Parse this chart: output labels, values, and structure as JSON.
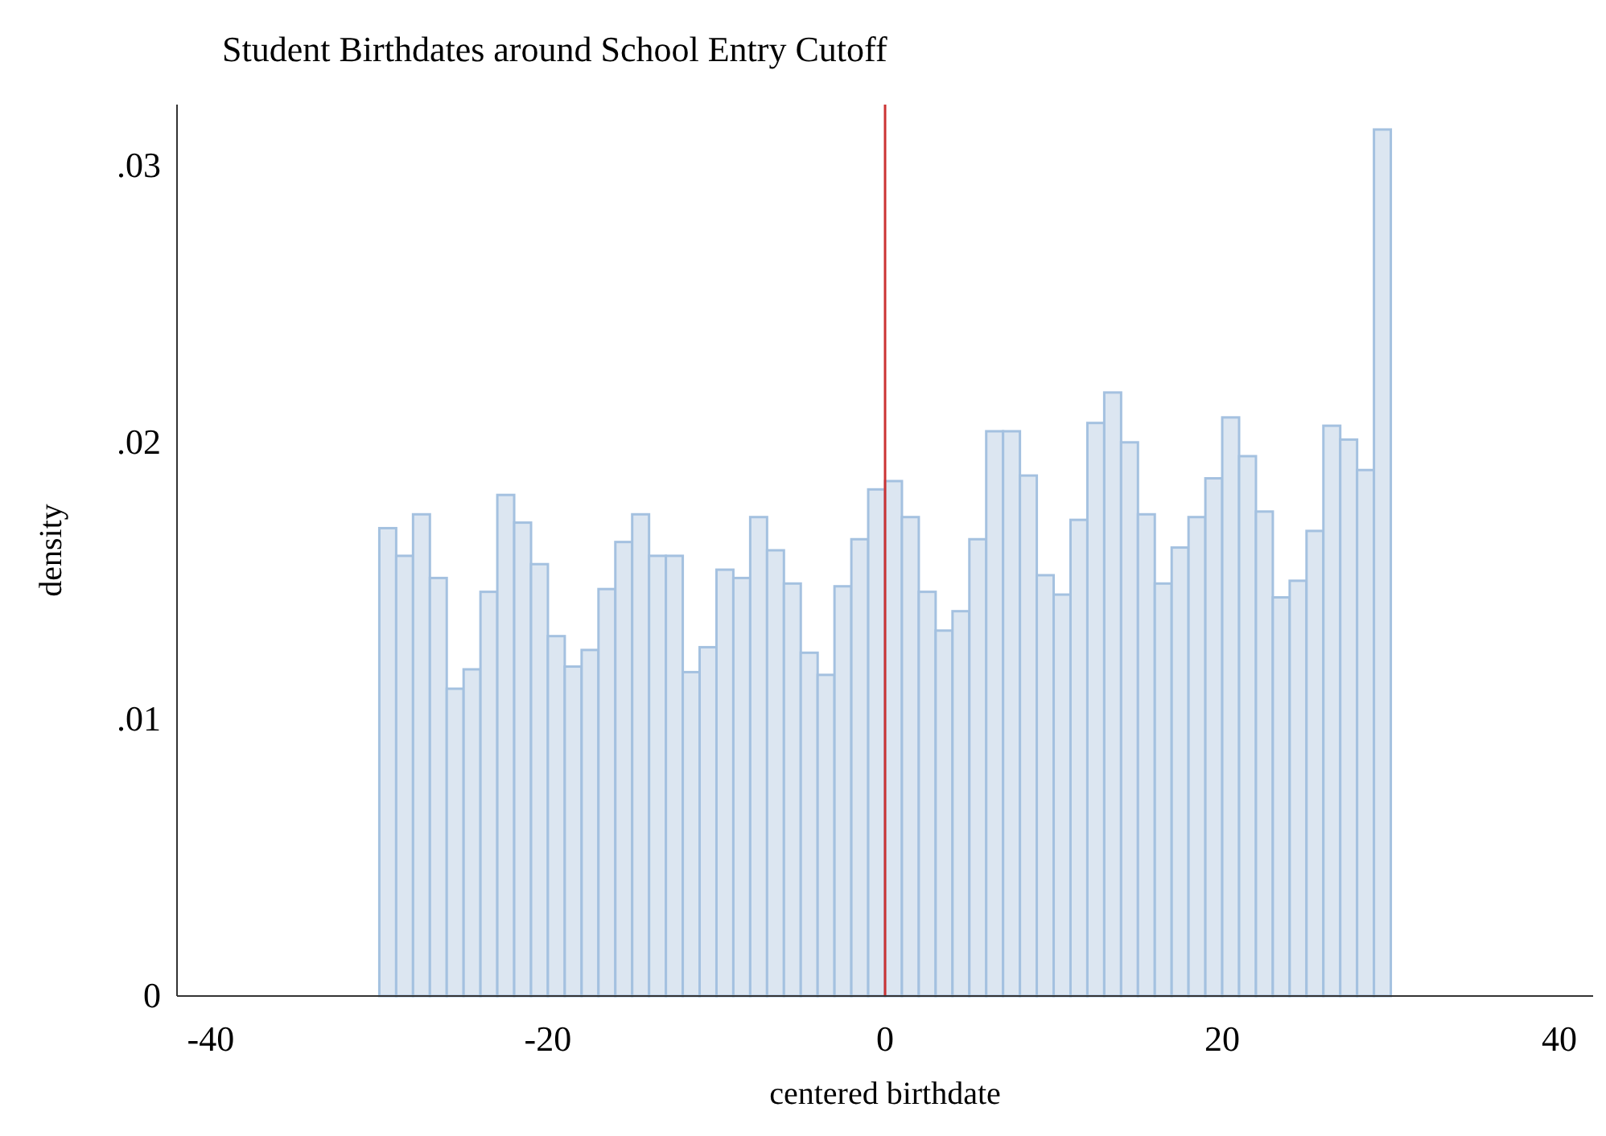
{
  "chart_data": {
    "type": "histogram",
    "title": "Student Birthdates around School Entry Cutoff",
    "xlabel": "centered birthdate",
    "ylabel": "density",
    "bins": [
      -30,
      -29,
      -28,
      -27,
      -26,
      -25,
      -24,
      -23,
      -22,
      -21,
      -20,
      -19,
      -18,
      -17,
      -16,
      -15,
      -14,
      -13,
      -12,
      -11,
      -10,
      -9,
      -8,
      -7,
      -6,
      -5,
      -4,
      -3,
      -2,
      -1,
      0,
      1,
      2,
      3,
      4,
      5,
      6,
      7,
      8,
      9,
      10,
      11,
      12,
      13,
      14,
      15,
      16,
      17,
      18,
      19,
      20,
      21,
      22,
      23,
      24,
      25,
      26,
      27,
      28,
      29,
      30
    ],
    "values": [
      0.0169,
      0.0159,
      0.0174,
      0.0151,
      0.0111,
      0.0118,
      0.0146,
      0.0181,
      0.0171,
      0.0156,
      0.013,
      0.0119,
      0.0125,
      0.0147,
      0.0164,
      0.0174,
      0.0159,
      0.0159,
      0.0117,
      0.0126,
      0.0154,
      0.0151,
      0.0173,
      0.0161,
      0.0149,
      0.0124,
      0.0116,
      0.0148,
      0.0165,
      0.0183,
      0.0186,
      0.0173,
      0.0146,
      0.0132,
      0.0139,
      0.0165,
      0.0204,
      0.0204,
      0.0188,
      0.0152,
      0.0145,
      0.0172,
      0.0207,
      0.0218,
      0.02,
      0.0174,
      0.0149,
      0.0162,
      0.0173,
      0.0187,
      0.0209,
      0.0195,
      0.0175,
      0.0144,
      0.015,
      0.0168,
      0.0206,
      0.0201,
      0.019,
      0.0313
    ],
    "color": "#dce6f1",
    "xlim": [
      -42,
      42
    ],
    "xticks": [
      -40,
      -20,
      0,
      20,
      40
    ],
    "ylim": [
      0,
      0.0322
    ],
    "yticks": [
      {
        "value": 0,
        "label": "0"
      },
      {
        "value": 0.01,
        "label": ".01"
      },
      {
        "value": 0.02,
        "label": ".02"
      },
      {
        "value": 0.03,
        "label": ".03"
      }
    ],
    "ref_lines": [
      {
        "axis": "x",
        "value": 0,
        "color": "#cc3333"
      }
    ],
    "grid": false
  }
}
